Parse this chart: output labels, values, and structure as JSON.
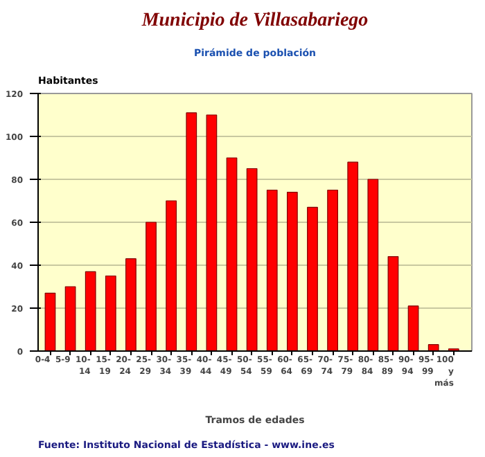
{
  "chart_data": {
    "type": "bar",
    "title": "Municipio de Villasabariego",
    "subtitle": "Pirámide de población",
    "ylabel": "Habitantes",
    "xlabel": "Tramos de edades",
    "categories": [
      "0-4",
      "5-9",
      "10-14",
      "15-19",
      "20-24",
      "25-29",
      "30-34",
      "35-39",
      "40-44",
      "45-49",
      "50-54",
      "55-59",
      "60-64",
      "65-69",
      "70-74",
      "75-79",
      "80-84",
      "85-89",
      "90-94",
      "95-99",
      "100 y más"
    ],
    "values": [
      27,
      30,
      37,
      35,
      43,
      60,
      70,
      111,
      110,
      90,
      85,
      75,
      74,
      67,
      75,
      88,
      80,
      44,
      21,
      3,
      1
    ],
    "color": "#ff0000",
    "ylim": [
      0,
      120
    ],
    "yticks": [
      0,
      20,
      40,
      60,
      80,
      100,
      120
    ],
    "grid": "y",
    "annotations": [
      "Fuente: Instituto Nacional de Estadística - www.ine.es"
    ]
  }
}
